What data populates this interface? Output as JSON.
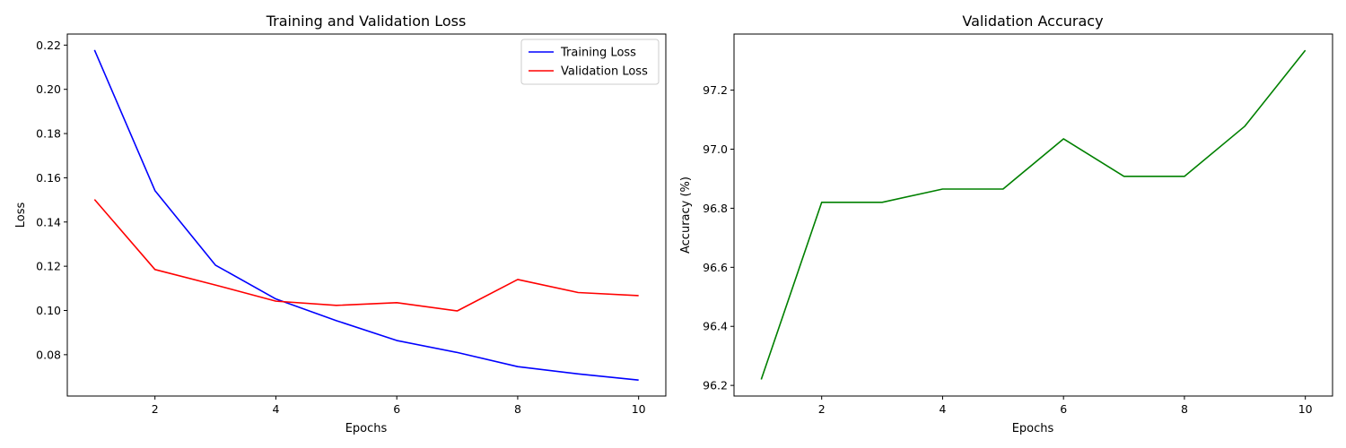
{
  "chart_data": [
    {
      "type": "line",
      "title": "Training and Validation Loss",
      "xlabel": "Epochs",
      "ylabel": "Loss",
      "x": [
        1,
        2,
        3,
        4,
        5,
        6,
        7,
        8,
        9,
        10
      ],
      "xlim": [
        0.55,
        10.45
      ],
      "ylim": [
        0.0613,
        0.225
      ],
      "xticks": [
        2,
        4,
        6,
        8,
        10
      ],
      "yticks": [
        0.08,
        0.1,
        0.12,
        0.14,
        0.16,
        0.18,
        0.2,
        0.22
      ],
      "ytick_labels": [
        "0.08",
        "0.10",
        "0.12",
        "0.14",
        "0.16",
        "0.18",
        "0.20",
        "0.22"
      ],
      "grid": false,
      "legend": "upper right",
      "series": [
        {
          "name": "Training Loss",
          "color": "#0000ff",
          "values": [
            0.2178,
            0.1542,
            0.1205,
            0.1052,
            0.0954,
            0.0864,
            0.081,
            0.0746,
            0.0713,
            0.0685
          ]
        },
        {
          "name": "Validation Loss",
          "color": "#ff0000",
          "values": [
            0.1502,
            0.1185,
            0.1115,
            0.1042,
            0.1023,
            0.1035,
            0.0998,
            0.114,
            0.1081,
            0.1067
          ]
        }
      ]
    },
    {
      "type": "line",
      "title": "Validation Accuracy",
      "xlabel": "Epochs",
      "ylabel": "Accuracy (%)",
      "x": [
        1,
        2,
        3,
        4,
        5,
        6,
        7,
        8,
        9,
        10
      ],
      "xlim": [
        0.55,
        10.45
      ],
      "ylim": [
        96.164,
        97.39
      ],
      "xticks": [
        2,
        4,
        6,
        8,
        10
      ],
      "yticks": [
        96.2,
        96.4,
        96.6,
        96.8,
        97.0,
        97.2
      ],
      "ytick_labels": [
        "96.2",
        "96.4",
        "96.6",
        "96.8",
        "97.0",
        "97.2"
      ],
      "grid": false,
      "series": [
        {
          "color": "#008000",
          "values": [
            96.22,
            96.82,
            96.82,
            96.865,
            96.865,
            97.035,
            96.908,
            96.908,
            97.078,
            97.335
          ]
        }
      ]
    }
  ]
}
